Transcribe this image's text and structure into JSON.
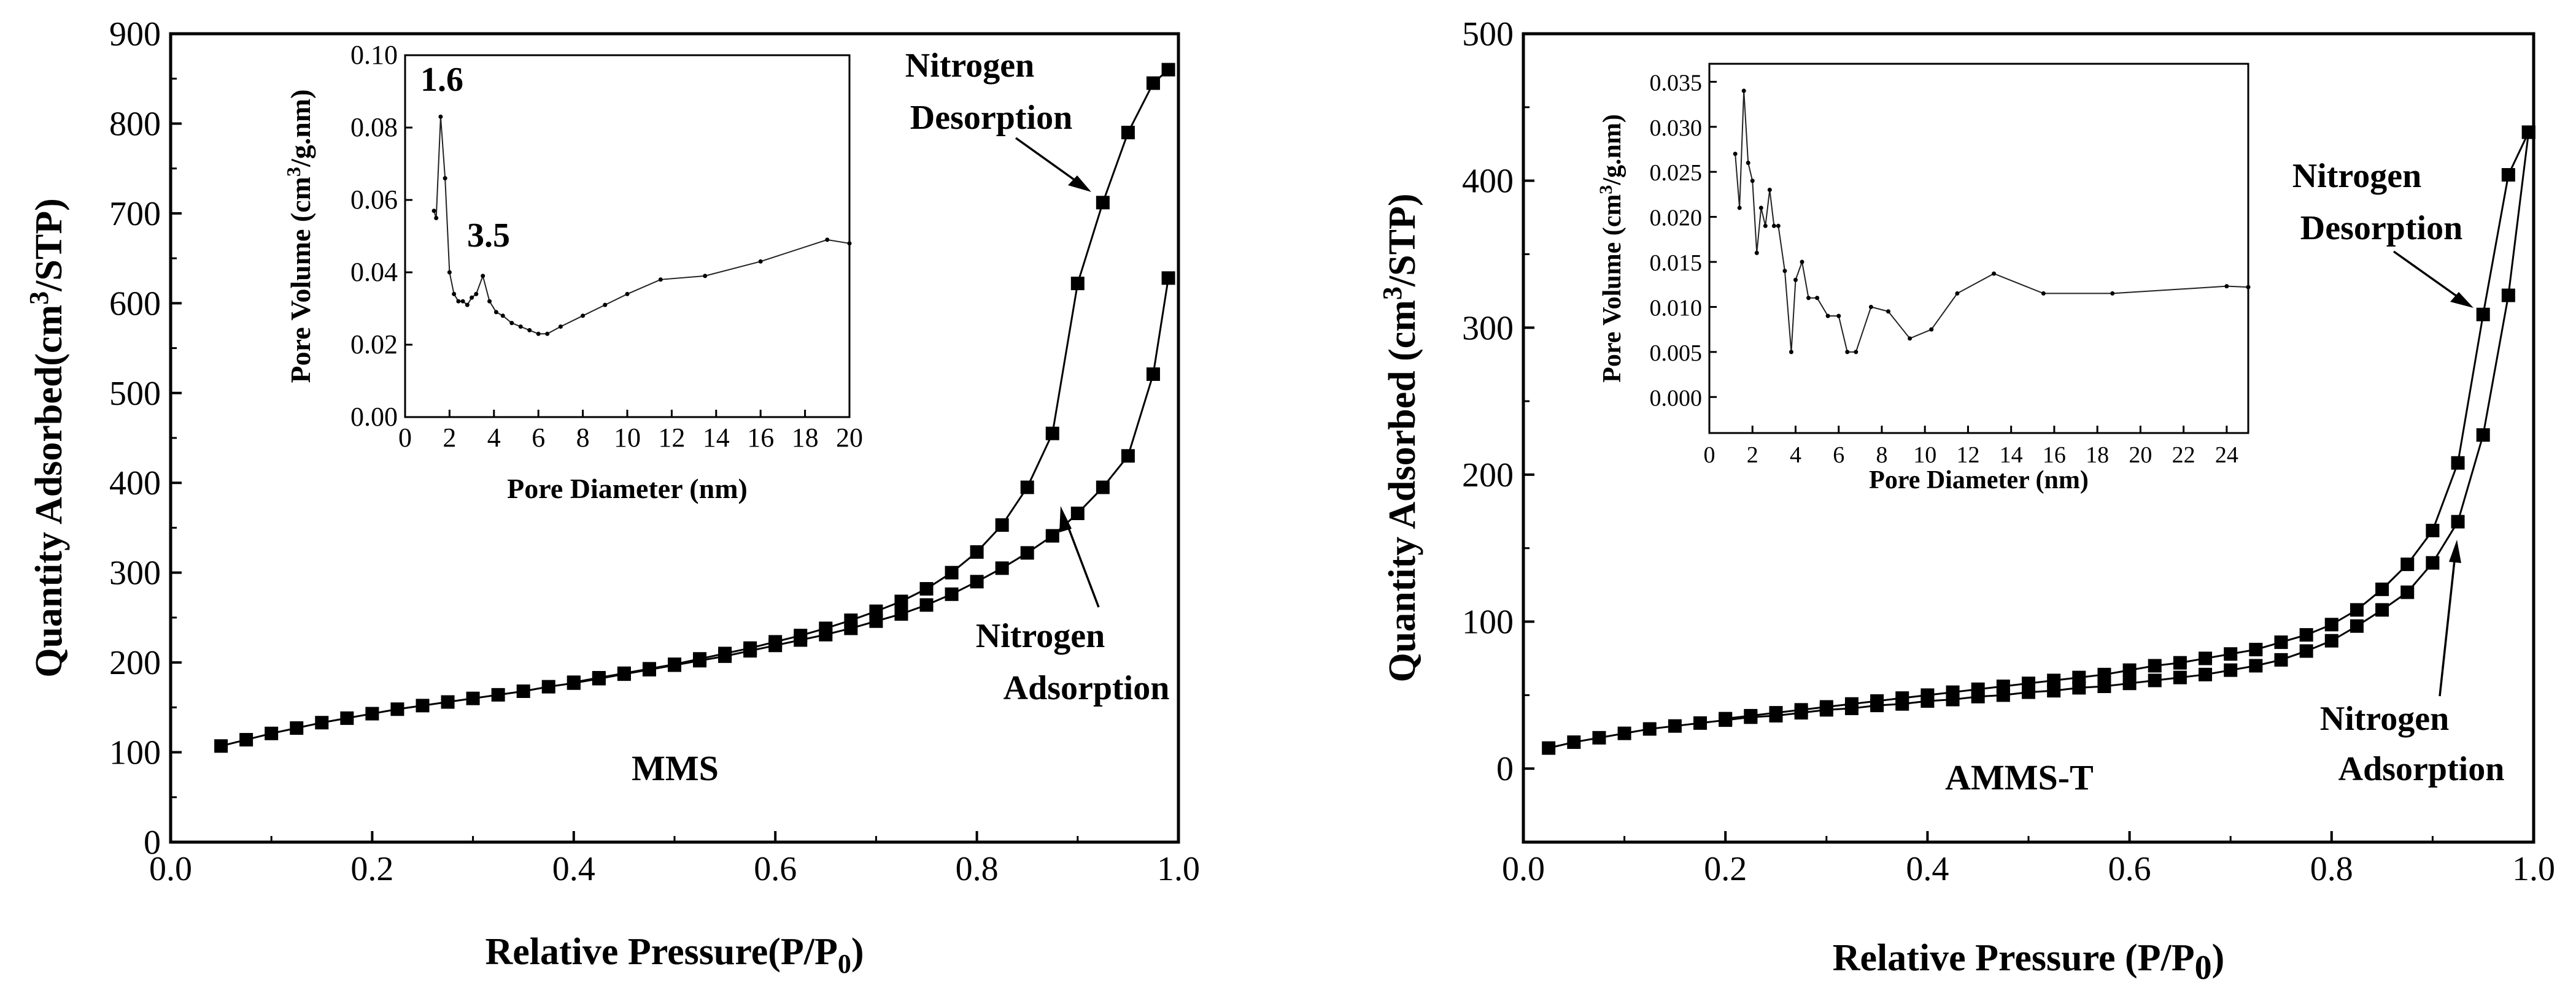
{
  "chart_data": [
    {
      "type": "scatter",
      "title": "MMS",
      "xlabel_main": "Relative Pressure(P/P",
      "xlabel_sub": "0",
      "xlabel_close": ")",
      "ylabel_main": "Quantity Adsorbed(cm",
      "ylabel_sup": "3",
      "ylabel_close": "/STP)",
      "xlim": [
        0.0,
        1.0
      ],
      "ylim": [
        0,
        900
      ],
      "x_ticks": [
        0.0,
        0.2,
        0.4,
        0.6,
        0.8,
        1.0
      ],
      "x_tick_labels": [
        "0.0",
        "0.2",
        "0.4",
        "0.6",
        "0.8",
        "1.0"
      ],
      "y_ticks": [
        0,
        100,
        200,
        300,
        400,
        500,
        600,
        700,
        800,
        900
      ],
      "y_tick_labels": [
        "0",
        "100",
        "200",
        "300",
        "400",
        "500",
        "600",
        "700",
        "800",
        "900"
      ],
      "series": [
        {
          "name": "Nitrogen Adsorption",
          "x": [
            0.05,
            0.075,
            0.1,
            0.125,
            0.15,
            0.175,
            0.2,
            0.225,
            0.25,
            0.275,
            0.3,
            0.325,
            0.35,
            0.375,
            0.4,
            0.425,
            0.45,
            0.475,
            0.5,
            0.525,
            0.55,
            0.575,
            0.6,
            0.625,
            0.65,
            0.675,
            0.7,
            0.725,
            0.75,
            0.775,
            0.8,
            0.825,
            0.85,
            0.875,
            0.9,
            0.925,
            0.95,
            0.975,
            0.99
          ],
          "y": [
            107,
            114,
            121,
            127,
            133,
            138,
            143,
            148,
            152,
            156,
            160,
            164,
            168,
            173,
            177,
            182,
            187,
            192,
            197,
            202,
            207,
            213,
            219,
            225,
            231,
            238,
            246,
            254,
            264,
            276,
            290,
            305,
            322,
            341,
            366,
            395,
            430,
            521,
            628
          ]
        },
        {
          "name": "Nitrogen Desorption",
          "x": [
            0.99,
            0.975,
            0.95,
            0.925,
            0.9,
            0.875,
            0.85,
            0.825,
            0.8,
            0.775,
            0.75,
            0.725,
            0.7,
            0.675,
            0.65,
            0.625,
            0.6,
            0.575,
            0.55,
            0.525,
            0.5,
            0.475,
            0.45,
            0.425,
            0.4
          ],
          "y": [
            860,
            845,
            790,
            712,
            622,
            455,
            395,
            353,
            323,
            300,
            282,
            268,
            257,
            247,
            238,
            230,
            223,
            216,
            210,
            204,
            198,
            193,
            188,
            183,
            178
          ]
        }
      ],
      "annotations": [
        {
          "text_line1": "Nitrogen",
          "text_line2": "Desorption"
        },
        {
          "text_line1": "Nitrogen",
          "text_line2": "Adsorption"
        }
      ],
      "inset": {
        "type": "line",
        "xlabel": "Pore Diameter (nm)",
        "ylabel_main": "Pore Volume (cm",
        "ylabel_sup": "3",
        "ylabel_close": "/g.nm)",
        "xlim": [
          0,
          20
        ],
        "ylim": [
          0.0,
          0.1
        ],
        "x_ticks": [
          0,
          2,
          4,
          6,
          8,
          10,
          12,
          14,
          16,
          18,
          20
        ],
        "x_tick_labels": [
          "0",
          "2",
          "4",
          "6",
          "8",
          "10",
          "12",
          "14",
          "16",
          "18",
          "20"
        ],
        "y_ticks": [
          0.0,
          0.02,
          0.04,
          0.06,
          0.08,
          0.1
        ],
        "y_tick_labels": [
          "0.00",
          "0.02",
          "0.04",
          "0.06",
          "0.08",
          "0.10"
        ],
        "x": [
          1.3,
          1.4,
          1.6,
          1.8,
          2.0,
          2.2,
          2.4,
          2.6,
          2.8,
          3.0,
          3.2,
          3.5,
          3.8,
          4.1,
          4.4,
          4.8,
          5.2,
          5.6,
          6.0,
          6.4,
          7.0,
          8.0,
          9.0,
          10.0,
          11.5,
          13.5,
          16.0,
          19.0,
          20.0
        ],
        "y": [
          0.057,
          0.055,
          0.083,
          0.066,
          0.04,
          0.034,
          0.032,
          0.032,
          0.031,
          0.033,
          0.034,
          0.039,
          0.032,
          0.029,
          0.028,
          0.026,
          0.025,
          0.024,
          0.023,
          0.023,
          0.025,
          0.028,
          0.031,
          0.034,
          0.038,
          0.039,
          0.043,
          0.049,
          0.048
        ],
        "peak_labels": [
          {
            "text": "1.6",
            "x": 1.6,
            "y": 0.083
          },
          {
            "text": "3.5",
            "x": 3.5,
            "y": 0.039
          }
        ]
      }
    },
    {
      "type": "scatter",
      "title": "AMMS-T",
      "xlabel_main": "Relative Pressure (P/P",
      "xlabel_sub": "0",
      "xlabel_close": ")",
      "ylabel_main": "Quantity Adsorbed (cm",
      "ylabel_sup": "3",
      "ylabel_close": "/STP)",
      "xlim": [
        0.0,
        1.0
      ],
      "ylim": [
        -50,
        500
      ],
      "x_ticks": [
        0.0,
        0.2,
        0.4,
        0.6,
        0.8,
        1.0
      ],
      "x_tick_labels": [
        "0.0",
        "0.2",
        "0.4",
        "0.6",
        "0.8",
        "1.0"
      ],
      "y_ticks": [
        0,
        100,
        200,
        300,
        400,
        500
      ],
      "y_tick_labels": [
        "0",
        "100",
        "200",
        "300",
        "400",
        "500"
      ],
      "series": [
        {
          "name": "Nitrogen Adsorption",
          "x": [
            0.025,
            0.05,
            0.075,
            0.1,
            0.125,
            0.15,
            0.175,
            0.2,
            0.225,
            0.25,
            0.275,
            0.3,
            0.325,
            0.35,
            0.375,
            0.4,
            0.425,
            0.45,
            0.475,
            0.5,
            0.525,
            0.55,
            0.575,
            0.6,
            0.625,
            0.65,
            0.675,
            0.7,
            0.725,
            0.75,
            0.775,
            0.8,
            0.825,
            0.85,
            0.875,
            0.9,
            0.925,
            0.95,
            0.975,
            0.995
          ],
          "y": [
            14,
            18,
            21,
            24,
            27,
            29,
            31,
            33,
            35,
            36,
            38,
            40,
            41,
            43,
            44,
            46,
            47,
            49,
            50,
            52,
            53,
            55,
            56,
            58,
            60,
            62,
            64,
            67,
            70,
            74,
            80,
            87,
            97,
            108,
            120,
            140,
            168,
            227,
            322,
            433
          ]
        },
        {
          "name": "Nitrogen Desorption",
          "x": [
            0.995,
            0.975,
            0.95,
            0.925,
            0.9,
            0.875,
            0.85,
            0.825,
            0.8,
            0.775,
            0.75,
            0.725,
            0.7,
            0.675,
            0.65,
            0.625,
            0.6,
            0.575,
            0.55,
            0.525,
            0.5,
            0.475,
            0.45,
            0.425,
            0.4,
            0.375,
            0.35,
            0.325,
            0.3,
            0.275,
            0.25,
            0.225,
            0.2
          ],
          "y": [
            433,
            404,
            309,
            208,
            162,
            139,
            122,
            108,
            98,
            91,
            86,
            81,
            78,
            75,
            72,
            70,
            67,
            64,
            62,
            60,
            58,
            56,
            54,
            52,
            50,
            48,
            46,
            44,
            42,
            40,
            38,
            36,
            34
          ]
        }
      ],
      "annotations": [
        {
          "text_line1": "Nitrogen",
          "text_line2": "Desorption"
        },
        {
          "text_line1": "Nitrogen",
          "text_line2": "Adsorption"
        }
      ],
      "inset": {
        "type": "line",
        "xlabel": "Pore Diameter (nm)",
        "ylabel_main": "Pore Volume (cm",
        "ylabel_sup": "3",
        "ylabel_close": "/g.nm)",
        "xlim": [
          0,
          25
        ],
        "ylim": [
          -0.004,
          0.037
        ],
        "x_ticks": [
          0,
          2,
          4,
          6,
          8,
          10,
          12,
          14,
          16,
          18,
          20,
          22,
          24
        ],
        "x_tick_labels": [
          "0",
          "2",
          "4",
          "6",
          "8",
          "10",
          "12",
          "14",
          "16",
          "18",
          "20",
          "22",
          "24"
        ],
        "y_ticks": [
          0.0,
          0.005,
          0.01,
          0.015,
          0.02,
          0.025,
          0.03,
          0.035
        ],
        "y_tick_labels": [
          "0.000",
          "0.005",
          "0.010",
          "0.015",
          "0.020",
          "0.025",
          "0.030",
          "0.035"
        ],
        "x": [
          1.2,
          1.4,
          1.6,
          1.8,
          2.0,
          2.2,
          2.4,
          2.6,
          2.8,
          3.0,
          3.2,
          3.5,
          3.8,
          4.0,
          4.3,
          4.6,
          5.0,
          5.5,
          6.0,
          6.4,
          6.8,
          7.5,
          8.3,
          9.3,
          10.3,
          11.5,
          13.2,
          15.5,
          18.7,
          24.0,
          25.0
        ],
        "y": [
          0.027,
          0.021,
          0.034,
          0.026,
          0.024,
          0.016,
          0.021,
          0.019,
          0.023,
          0.019,
          0.019,
          0.014,
          0.005,
          0.013,
          0.015,
          0.011,
          0.011,
          0.009,
          0.009,
          0.005,
          0.005,
          0.01,
          0.0095,
          0.0065,
          0.0075,
          0.0115,
          0.0137,
          0.0115,
          0.0115,
          0.0123,
          0.0122
        ]
      }
    }
  ]
}
